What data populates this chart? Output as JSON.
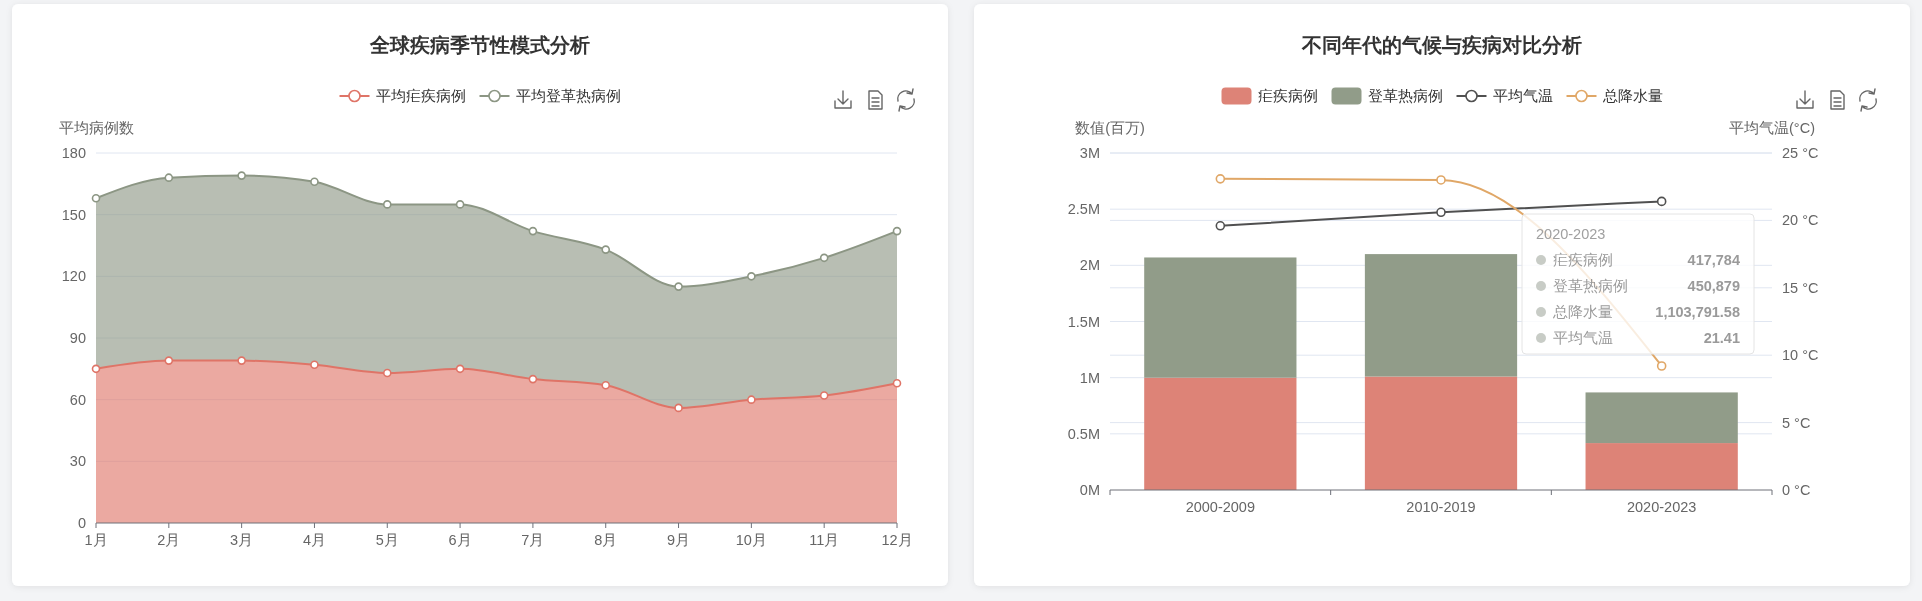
{
  "chart_data": [
    {
      "type": "area",
      "title": "全球疾病季节性模式分析",
      "ylabel": "平均病例数",
      "categories": [
        "1月",
        "2月",
        "3月",
        "4月",
        "5月",
        "6月",
        "7月",
        "8月",
        "9月",
        "10月",
        "11月",
        "12月"
      ],
      "stacked": true,
      "series": [
        {
          "name": "平均疟疾病例",
          "color": "#df7467",
          "values": [
            75,
            79,
            79,
            77,
            73,
            75,
            70,
            67,
            56,
            60,
            62,
            68
          ]
        },
        {
          "name": "平均登革热病例",
          "color": "#8c9684",
          "values": [
            83,
            89,
            90,
            89,
            82,
            80,
            72,
            66,
            59,
            60,
            67,
            74
          ]
        }
      ],
      "ylim": [
        0,
        180
      ],
      "yticks": [
        0,
        30,
        60,
        90,
        120,
        150,
        180
      ],
      "grid": "y",
      "legend": "top",
      "marker": "circle"
    },
    {
      "type": "bar",
      "title": "不同年代的气候与疾病对比分析",
      "ylabel": "数值(百万)",
      "y2label": "平均气温(°C)",
      "categories": [
        "2000-2009",
        "2010-2019",
        "2020-2023"
      ],
      "stacked": true,
      "series": [
        {
          "name": "疟疾病例",
          "color": "#dd8377",
          "values": [
            1000000,
            1010000,
            417784
          ]
        },
        {
          "name": "登革热病例",
          "color": "#919c89",
          "values": [
            1070000,
            1090000,
            450879
          ]
        },
        {
          "name": "平均气温",
          "type": "line",
          "axis": "y2",
          "color": "#505050",
          "marker": "circle",
          "values": [
            19.6,
            20.6,
            21.41
          ]
        },
        {
          "name": "总降水量",
          "type": "line",
          "color": "#e0a767",
          "marker": "circle",
          "values": [
            2770000,
            2760000,
            1103791.58
          ]
        }
      ],
      "ylim": [
        0,
        3000000
      ],
      "yticks": [
        {
          "value": 0,
          "label": "0M"
        },
        {
          "value": 500000,
          "label": "0.5M"
        },
        {
          "value": 1000000,
          "label": "1M"
        },
        {
          "value": 1500000,
          "label": "1.5M"
        },
        {
          "value": 2000000,
          "label": "2M"
        },
        {
          "value": 2500000,
          "label": "2.5M"
        },
        {
          "value": 3000000,
          "label": "3M"
        }
      ],
      "y2lim": [
        0,
        25
      ],
      "y2ticks": [
        {
          "value": 0,
          "label": "0 °C"
        },
        {
          "value": 5,
          "label": "5 °C"
        },
        {
          "value": 10,
          "label": "10 °C"
        },
        {
          "value": 15,
          "label": "15 °C"
        },
        {
          "value": 20,
          "label": "20 °C"
        },
        {
          "value": 25,
          "label": "25 °C"
        }
      ],
      "grid": "y",
      "legend": "top",
      "annotations": [
        "2020-2023",
        "疟疾病例",
        "417,784",
        "登革热病例",
        "450,879",
        "总降水量",
        "1,103,791.58",
        "平均气温",
        "21.41"
      ]
    }
  ]
}
